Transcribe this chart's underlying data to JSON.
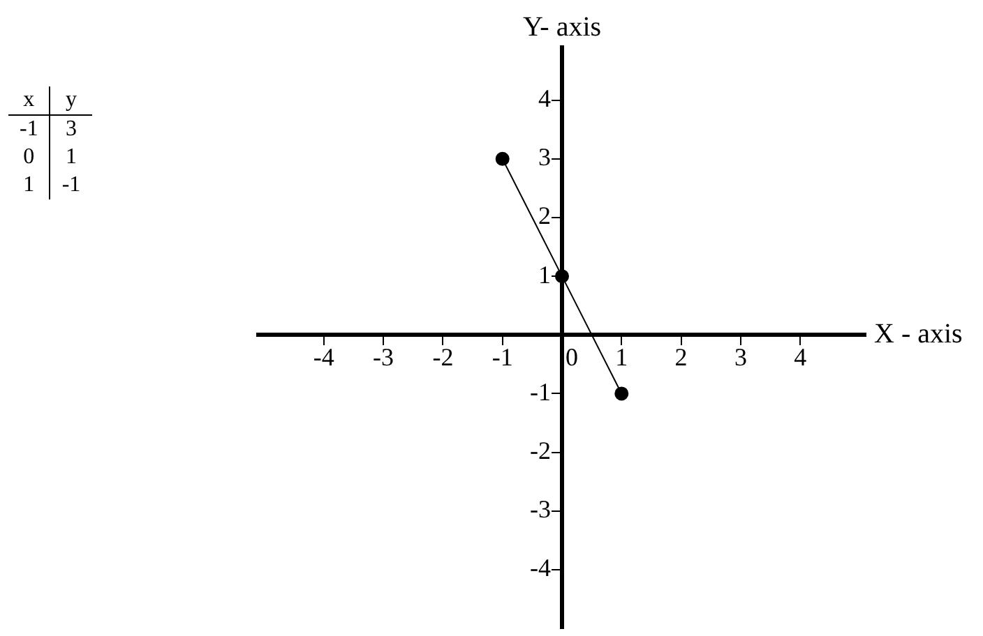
{
  "chart_data": {
    "type": "line",
    "xlabel": "X - axis",
    "ylabel": "Y- axis",
    "x": [
      -1,
      0,
      1
    ],
    "series": [
      {
        "color": "#000000",
        "values": [
          3,
          1,
          -1
        ]
      }
    ],
    "xlim": [
      -5.1,
      5.1
    ],
    "ylim": [
      -5,
      4.9
    ],
    "xticks": [
      -4,
      -3,
      -2,
      -1,
      0,
      1,
      2,
      3,
      4
    ],
    "yticks": [
      -4,
      -3,
      -2,
      -1,
      1,
      2,
      3,
      4
    ],
    "grid": false,
    "legend": false,
    "marker": "circle",
    "line_style": "solid",
    "annotations": [
      "x",
      "y",
      "-1",
      "3",
      "0",
      "1",
      "1",
      "-1"
    ]
  }
}
